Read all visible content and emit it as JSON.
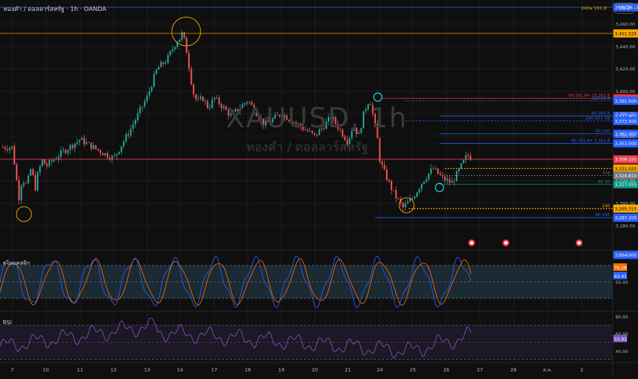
{
  "header": {
    "symbol_text": "ทองคำ / ดอลลาร์สหรัฐ · 1h · OANDA",
    "watermark_main": "XAUUSD, 1h",
    "watermark_sub": "ทองคำ / ดอลลาร์สหรัฐ",
    "currency": "USD"
  },
  "chart_data": {
    "type": "candlestick",
    "timeframe": "1h",
    "price_axis_ticks": [
      3460,
      3440,
      3420,
      3400,
      3380,
      3360,
      3340,
      3320,
      3300,
      3280
    ],
    "price_axis_labels": [
      "3,460.00",
      "3,440.00",
      "3,420.00",
      "3,400.00",
      "3,380.00",
      "3,360.00",
      "3,340.00",
      "3,320.00",
      "3,300.00",
      "3,280.00"
    ],
    "x_axis_labels": [
      "7",
      "10",
      "11",
      "12",
      "13",
      "14",
      "17",
      "18",
      "19",
      "20",
      "21",
      "24",
      "25",
      "26",
      "27",
      "28",
      "ส.ค.",
      "2"
    ],
    "price_path": [
      [
        7.0,
        3350
      ],
      [
        7.3,
        3328
      ],
      [
        7.6,
        3305
      ],
      [
        7.9,
        3322
      ],
      [
        8.3,
        3316
      ],
      [
        8.7,
        3333
      ],
      [
        9.0,
        3312
      ],
      [
        9.3,
        3328
      ],
      [
        9.7,
        3339
      ],
      [
        10.0,
        3333
      ],
      [
        10.5,
        3346
      ],
      [
        11.0,
        3357
      ],
      [
        11.5,
        3348
      ],
      [
        12.0,
        3340
      ],
      [
        12.5,
        3366
      ],
      [
        13.0,
        3395
      ],
      [
        13.3,
        3420
      ],
      [
        13.6,
        3428
      ],
      [
        13.9,
        3445
      ],
      [
        14.2,
        3452
      ],
      [
        14.5,
        3440
      ],
      [
        14.8,
        3420
      ],
      [
        15.1,
        3400
      ],
      [
        15.5,
        3390
      ],
      [
        16.0,
        3394
      ],
      [
        16.5,
        3385
      ],
      [
        17.0,
        3394
      ],
      [
        17.5,
        3378
      ],
      [
        18.0,
        3392
      ],
      [
        18.5,
        3370
      ],
      [
        19.0,
        3380
      ],
      [
        19.5,
        3370
      ],
      [
        20.0,
        3360
      ],
      [
        20.5,
        3377
      ],
      [
        21.0,
        3355
      ],
      [
        21.5,
        3370
      ],
      [
        22.0,
        3360
      ],
      [
        22.5,
        3382
      ],
      [
        23.0,
        3394
      ],
      [
        23.4,
        3375
      ],
      [
        23.8,
        3355
      ],
      [
        24.1,
        3330
      ],
      [
        24.4,
        3310
      ],
      [
        24.7,
        3296
      ],
      [
        25.0,
        3305
      ],
      [
        25.3,
        3320
      ],
      [
        25.6,
        3331
      ],
      [
        25.9,
        3322
      ],
      [
        26.2,
        3318
      ],
      [
        26.5,
        3330
      ],
      [
        26.8,
        3343
      ],
      [
        27.0,
        3340
      ]
    ],
    "horizontal_levels": [
      {
        "value": 3474.8,
        "label": "240a 161.8",
        "color": "#2962ff"
      },
      {
        "value": 3451.525,
        "label": "3,451.525",
        "color": "#f7a600"
      },
      {
        "value": 3393.649,
        "label": "3,393.649",
        "color": "#f23645",
        "tag": "60 161.8+ 15 261.8"
      },
      {
        "value": 3391.5,
        "label": "3,391.500",
        "color": "#2962ff",
        "tag": "240 61.8"
      },
      {
        "value": 3377.902,
        "label": "3,377.902",
        "color": "#2962ff",
        "tag": "60 261.8"
      },
      {
        "value": 3373.5,
        "label": "3,373.500",
        "color": "#2962ff",
        "tag": "240 50+ 58"
      },
      {
        "value": 3362.0,
        "label": "3,362.000",
        "color": "#2962ff",
        "tag": "60 200"
      },
      {
        "value": 3353.5,
        "label": "3,353.500",
        "color": "#2962ff",
        "tag": "60 161.8+ 5 261.8"
      },
      {
        "value": 3339.22,
        "label": "3,339.220",
        "color": "#f23645"
      },
      {
        "value": 3331.025,
        "label": "3,331.025",
        "color": "#f7a600"
      },
      {
        "value": 3324.81,
        "label": "3,324.810",
        "color": "#787b86",
        "tag": "5รอ"
      },
      {
        "value": 3317.055,
        "label": "3,317.055",
        "color": "#089981",
        "tag": "60 30"
      },
      {
        "value": 3295.315,
        "label": "3,295.315",
        "color": "#f7a600",
        "tag": "240"
      },
      {
        "value": 3287.2,
        "label": "3,287.200",
        "color": "#2962ff",
        "tag": "60 200"
      },
      {
        "value": 3254.0,
        "label": "3,254.000",
        "color": "#2962ff"
      }
    ],
    "stoch": {
      "title": "สโทแคสติก",
      "axis_labels": [
        "100.00",
        "50.00"
      ],
      "k_value_label": "76.28",
      "d_value_label": "63.41"
    },
    "rsi": {
      "title": "RSI",
      "axis_labels": [
        "80.00",
        "60.00",
        "40.00"
      ],
      "value_label": "53.93"
    }
  },
  "colors": {
    "up": "#26a69a",
    "down": "#ef5350",
    "stoch_k": "#2962ff",
    "stoch_d": "#ff6d00",
    "rsi_line": "#7e57c2",
    "grid": "#1e1e1e"
  }
}
